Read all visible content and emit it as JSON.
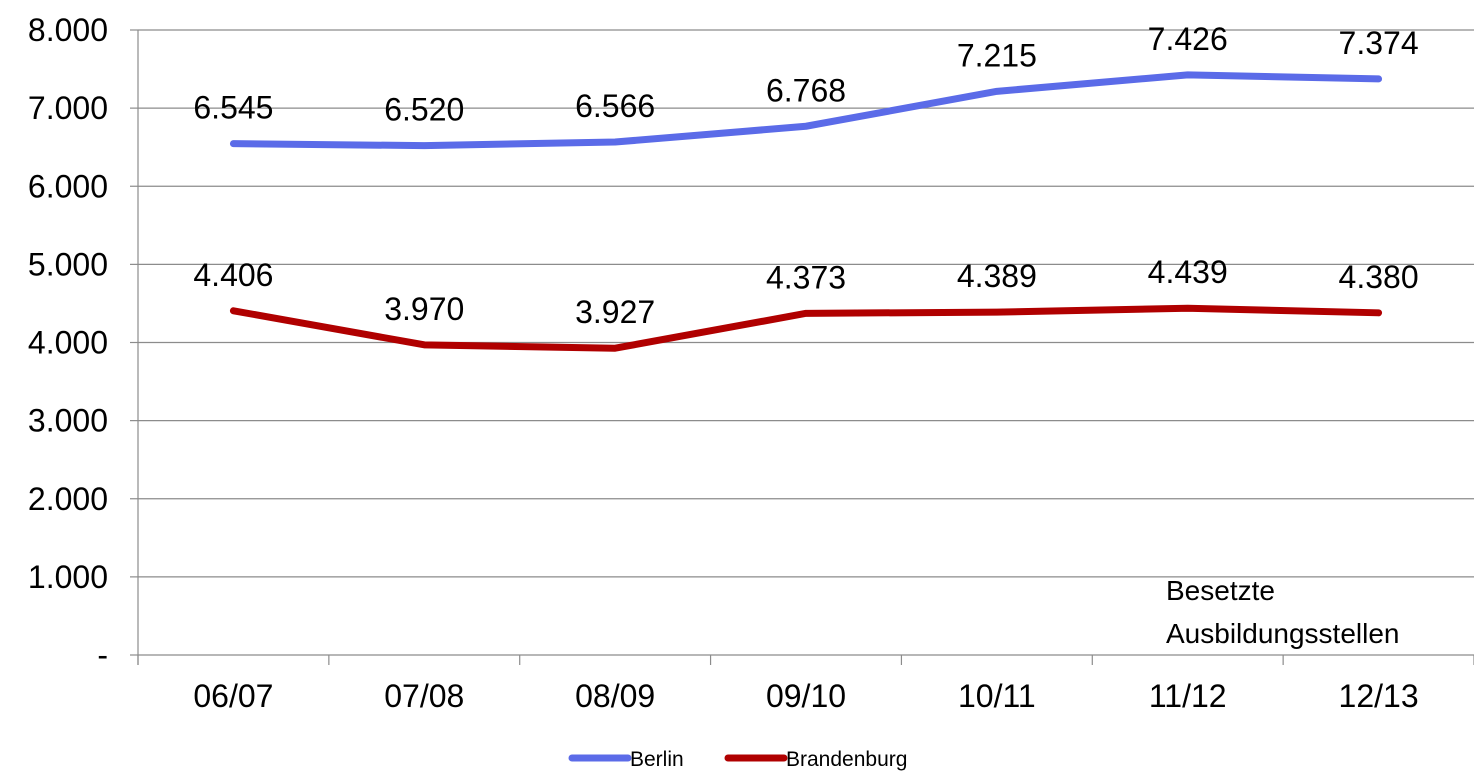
{
  "chart_data": {
    "type": "line",
    "categories": [
      "06/07",
      "07/08",
      "08/09",
      "09/10",
      "10/11",
      "11/12",
      "12/13"
    ],
    "y_ticks": [
      "-",
      "1.000",
      "2.000",
      "3.000",
      "4.000",
      "5.000",
      "6.000",
      "7.000",
      "8.000"
    ],
    "ylim": [
      0,
      8000
    ],
    "grid": true,
    "legend_position": "bottom",
    "annotation": [
      "Besetzte",
      "Ausbildungsstellen"
    ],
    "series": [
      {
        "name": "Berlin",
        "color": "#5B6BE8",
        "values": [
          6545,
          6520,
          6566,
          6768,
          7215,
          7426,
          7374
        ],
        "labels": [
          "6.545",
          "6.520",
          "6.566",
          "6.768",
          "7.215",
          "7.426",
          "7.374"
        ]
      },
      {
        "name": "Brandenburg",
        "color": "#B00000",
        "values": [
          4406,
          3970,
          3927,
          4373,
          4389,
          4439,
          4380
        ],
        "labels": [
          "4.406",
          "3.970",
          "3.927",
          "4.373",
          "4.389",
          "4.439",
          "4.380"
        ]
      }
    ]
  }
}
